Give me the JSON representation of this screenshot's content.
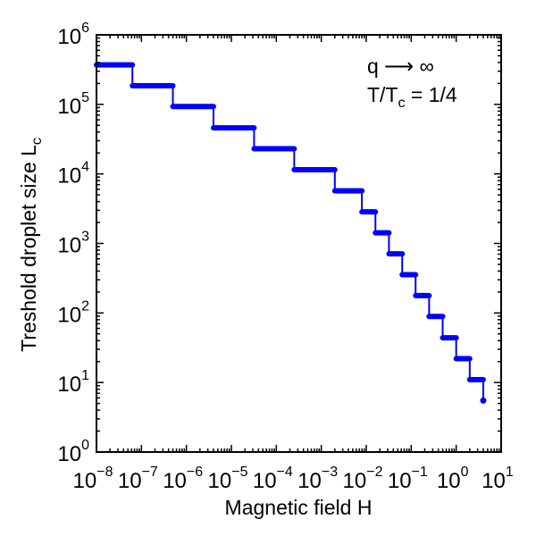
{
  "chart_data": {
    "type": "line",
    "xlabel": "Magnetic field H",
    "ylabel_main": "Treshold droplet size L",
    "ylabel_sub": "c",
    "x_scale": "log",
    "y_scale": "log",
    "xlim": [
      1e-08,
      10
    ],
    "ylim": [
      1,
      1000000
    ],
    "x_ticks": [
      {
        "base": "10",
        "exp": "−8"
      },
      {
        "base": "10",
        "exp": "−7"
      },
      {
        "base": "10",
        "exp": "−6"
      },
      {
        "base": "10",
        "exp": "−5"
      },
      {
        "base": "10",
        "exp": "−4"
      },
      {
        "base": "10",
        "exp": "−3"
      },
      {
        "base": "10",
        "exp": "−2"
      },
      {
        "base": "10",
        "exp": "−1"
      },
      {
        "base": "10",
        "exp": "0"
      },
      {
        "base": "10",
        "exp": "1"
      }
    ],
    "y_ticks": [
      {
        "base": "10",
        "exp": "0"
      },
      {
        "base": "10",
        "exp": "1"
      },
      {
        "base": "10",
        "exp": "2"
      },
      {
        "base": "10",
        "exp": "3"
      },
      {
        "base": "10",
        "exp": "4"
      },
      {
        "base": "10",
        "exp": "5"
      },
      {
        "base": "10",
        "exp": "6"
      }
    ],
    "annotation": {
      "line1": "q ⟶ ∞",
      "line2_main": "T/T",
      "line2_sub": "c",
      "line2_rest": " = 1/4"
    },
    "series": [
      {
        "color": "#0000ff",
        "steps": [
          {
            "x0": 1e-08,
            "x1": 6.3e-08,
            "y": 370000
          },
          {
            "x0": 6.3e-08,
            "x1": 5e-07,
            "y": 185000
          },
          {
            "x0": 5e-07,
            "x1": 4e-06,
            "y": 93000
          },
          {
            "x0": 4e-06,
            "x1": 3.2e-05,
            "y": 46000
          },
          {
            "x0": 3.2e-05,
            "x1": 0.00025,
            "y": 23000
          },
          {
            "x0": 0.00025,
            "x1": 0.002,
            "y": 11500
          },
          {
            "x0": 0.002,
            "x1": 0.008,
            "y": 5700
          },
          {
            "x0": 0.008,
            "x1": 0.016,
            "y": 2850
          },
          {
            "x0": 0.016,
            "x1": 0.032,
            "y": 1420
          },
          {
            "x0": 0.032,
            "x1": 0.063,
            "y": 710
          },
          {
            "x0": 0.063,
            "x1": 0.125,
            "y": 355
          },
          {
            "x0": 0.125,
            "x1": 0.25,
            "y": 178
          },
          {
            "x0": 0.25,
            "x1": 0.5,
            "y": 89
          },
          {
            "x0": 0.5,
            "x1": 1.0,
            "y": 44
          },
          {
            "x0": 1.0,
            "x1": 2.0,
            "y": 22
          },
          {
            "x0": 2.0,
            "x1": 4.0,
            "y": 11
          },
          {
            "x0": 4.0,
            "x1": 4.0,
            "y": 5.5
          }
        ]
      }
    ]
  }
}
